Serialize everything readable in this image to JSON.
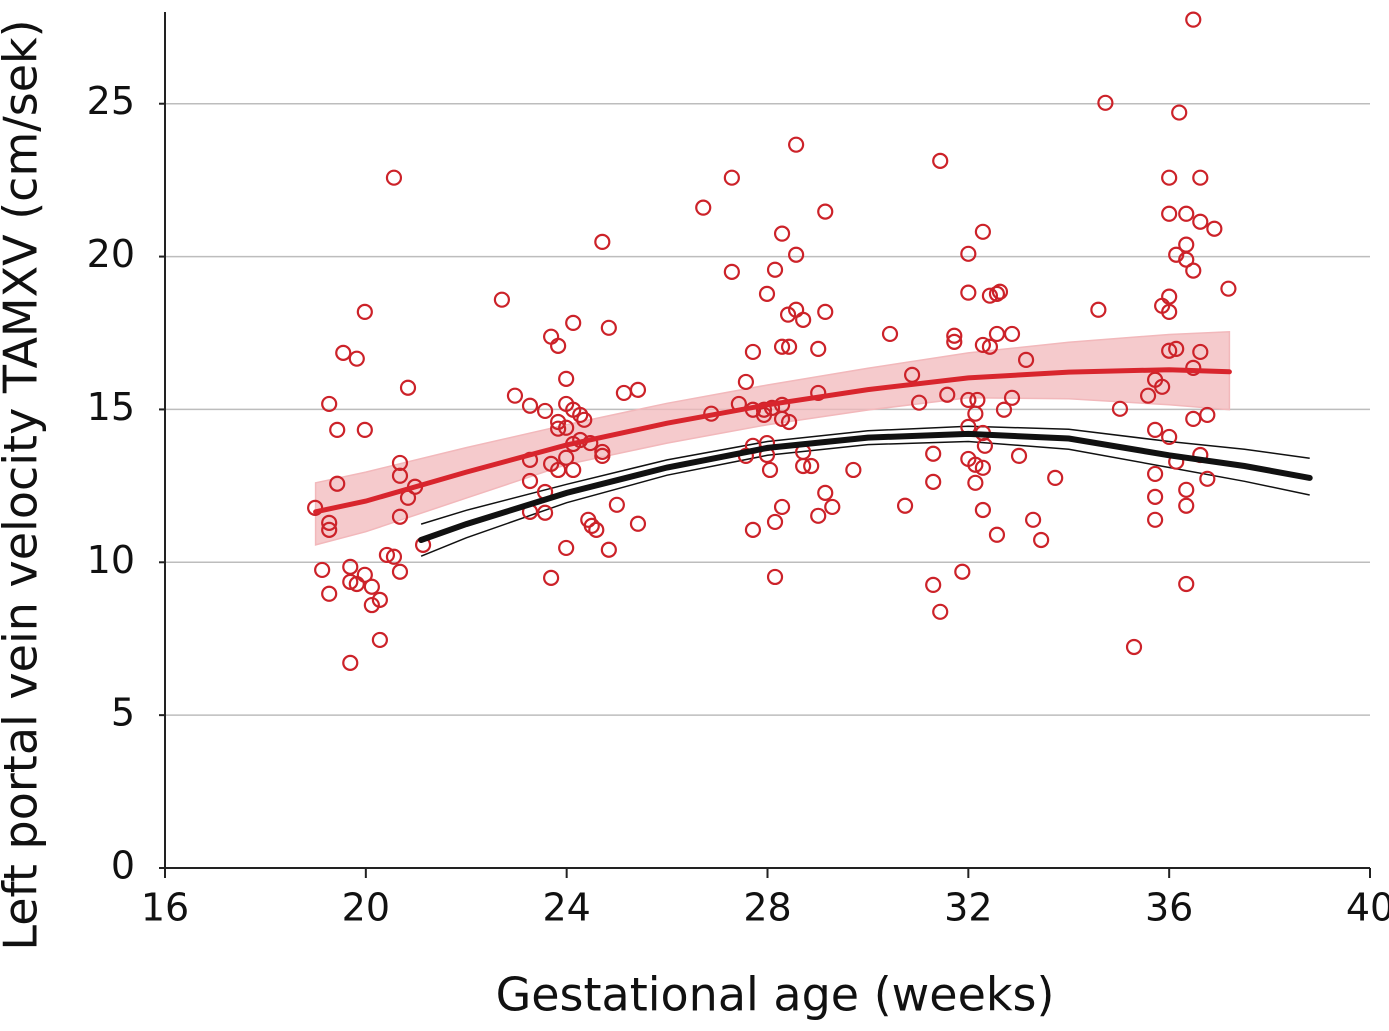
{
  "chart_data": {
    "type": "scatter",
    "x_label": "Gestational age (weeks)",
    "y_label": "Left portal vein velocity TAMXV (cm/sek)",
    "xlim": [
      16,
      40
    ],
    "ylim": [
      0,
      28
    ],
    "xticks": [
      16,
      20,
      24,
      28,
      32,
      36,
      40
    ],
    "yticks": [
      0,
      5,
      10,
      15,
      20,
      25
    ],
    "grid": true,
    "points": {
      "color": "#cc2229",
      "x": [
        18.99,
        19.13,
        19.27,
        19.27,
        19.27,
        19.27,
        19.43,
        19.43,
        19.55,
        19.69,
        19.69,
        19.69,
        19.82,
        19.82,
        19.98,
        19.98,
        19.98,
        20.12,
        20.12,
        20.28,
        20.28,
        20.42,
        20.56,
        20.56,
        20.68,
        20.68,
        20.68,
        20.68,
        20.84,
        20.84,
        20.98,
        21.14,
        22.71,
        22.97,
        23.27,
        23.27,
        23.27,
        23.27,
        23.57,
        23.57,
        23.57,
        23.69,
        23.69,
        23.69,
        23.83,
        23.83,
        23.83,
        23.83,
        23.99,
        23.99,
        23.99,
        23.99,
        23.99,
        24.13,
        24.13,
        24.13,
        24.13,
        24.27,
        24.27,
        24.35,
        24.47,
        24.43,
        24.5,
        24.59,
        24.71,
        24.71,
        24.71,
        24.84,
        24.84,
        25.0,
        25.14,
        25.42,
        25.42,
        26.72,
        26.88,
        27.29,
        27.29,
        27.43,
        27.57,
        27.57,
        27.71,
        27.71,
        27.71,
        27.71,
        27.99,
        27.93,
        27.93,
        27.99,
        27.99,
        28.05,
        28.15,
        28.09,
        28.15,
        28.15,
        28.29,
        28.29,
        28.29,
        28.29,
        28.29,
        28.41,
        28.43,
        28.43,
        28.57,
        28.57,
        28.57,
        28.71,
        28.71,
        28.71,
        28.87,
        29.01,
        29.01,
        29.01,
        29.15,
        29.15,
        29.15,
        29.29,
        29.71,
        30.44,
        30.74,
        30.88,
        31.02,
        31.3,
        31.3,
        31.3,
        31.44,
        31.44,
        31.58,
        31.72,
        31.72,
        31.88,
        32.0,
        32.0,
        32.0,
        32.0,
        32.0,
        32.14,
        32.14,
        32.14,
        32.18,
        32.29,
        32.29,
        32.29,
        32.33,
        32.29,
        32.29,
        32.43,
        32.43,
        32.57,
        32.63,
        32.57,
        32.57,
        32.71,
        32.87,
        32.87,
        33.01,
        33.15,
        33.29,
        33.45,
        33.73,
        34.59,
        34.73,
        35.02,
        35.3,
        35.58,
        35.72,
        35.72,
        35.72,
        35.72,
        35.72,
        35.86,
        35.86,
        36.0,
        36.0,
        36.0,
        36.0,
        36.0,
        36.0,
        36.14,
        36.14,
        36.14,
        36.2,
        36.34,
        36.34,
        36.34,
        36.34,
        36.34,
        36.34,
        36.48,
        36.48,
        36.48,
        36.48,
        36.62,
        36.62,
        36.62,
        36.62,
        36.76,
        36.76,
        36.9,
        37.18
      ],
      "y": [
        11.78,
        9.75,
        15.18,
        11.29,
        11.06,
        8.97,
        14.33,
        12.57,
        16.85,
        6.71,
        9.85,
        9.36,
        16.66,
        9.29,
        18.19,
        14.33,
        9.59,
        9.2,
        8.6,
        8.77,
        7.46,
        10.24,
        22.58,
        10.18,
        13.25,
        12.83,
        11.49,
        9.69,
        15.71,
        12.11,
        12.47,
        10.57,
        18.59,
        15.45,
        15.12,
        13.35,
        12.66,
        11.65,
        14.95,
        12.3,
        11.62,
        17.38,
        13.22,
        9.49,
        17.08,
        14.59,
        14.37,
        13.02,
        16.0,
        15.18,
        14.4,
        13.42,
        10.47,
        17.83,
        14.99,
        13.87,
        13.02,
        14.82,
        14.0,
        14.66,
        13.9,
        11.39,
        11.19,
        11.06,
        20.48,
        13.61,
        13.48,
        17.67,
        10.41,
        11.88,
        15.54,
        15.64,
        11.26,
        21.6,
        14.86,
        22.58,
        19.5,
        15.18,
        15.9,
        13.48,
        16.88,
        14.99,
        13.81,
        11.06,
        18.78,
        14.99,
        14.82,
        13.9,
        13.51,
        13.02,
        19.57,
        15.05,
        11.32,
        9.52,
        20.75,
        17.05,
        15.15,
        14.69,
        11.81,
        18.1,
        17.05,
        14.59,
        23.66,
        20.06,
        18.26,
        17.93,
        13.61,
        13.15,
        13.15,
        16.98,
        15.54,
        11.52,
        21.47,
        18.19,
        12.27,
        11.81,
        13.02,
        17.47,
        11.85,
        16.13,
        15.22,
        13.55,
        12.63,
        9.26,
        23.13,
        8.38,
        15.48,
        17.41,
        17.21,
        9.69,
        20.09,
        18.82,
        15.31,
        14.43,
        13.38,
        13.19,
        14.86,
        12.6,
        15.31,
        20.81,
        17.11,
        14.23,
        13.81,
        13.09,
        11.71,
        18.72,
        17.05,
        18.78,
        18.85,
        17.47,
        10.9,
        14.99,
        15.38,
        17.47,
        13.48,
        16.62,
        11.39,
        10.73,
        12.76,
        18.26,
        25.03,
        15.02,
        7.23,
        15.45,
        15.97,
        14.33,
        12.89,
        12.14,
        11.39,
        18.39,
        15.74,
        22.58,
        21.4,
        18.69,
        18.19,
        16.92,
        14.1,
        16.98,
        20.06,
        13.29,
        24.71,
        21.4,
        20.39,
        19.9,
        12.37,
        11.85,
        9.29,
        27.75,
        19.54,
        16.36,
        14.69,
        22.58,
        21.14,
        16.88,
        13.51,
        14.82,
        12.73,
        20.91,
        18.95
      ]
    },
    "fits": [
      {
        "color": "#d8252d",
        "band_color": "#f2b8bb",
        "x": [
          19,
          20,
          22,
          24,
          26,
          28,
          30,
          32,
          34,
          36,
          37.2
        ],
        "y": [
          11.65,
          12.0,
          12.95,
          13.84,
          14.55,
          15.15,
          15.65,
          16.03,
          16.22,
          16.3,
          16.23
        ],
        "upper": [
          12.6,
          12.95,
          13.75,
          14.5,
          15.2,
          15.8,
          16.35,
          16.85,
          17.2,
          17.45,
          17.54
        ],
        "lower": [
          10.57,
          11.0,
          12.1,
          13.2,
          13.9,
          14.5,
          14.98,
          15.38,
          15.35,
          15.15,
          14.99
        ]
      },
      {
        "color": "#111111",
        "band_color": "#111111",
        "x": [
          21.1,
          22,
          24,
          26,
          28,
          30,
          32,
          34,
          36,
          37.5,
          38.8
        ],
        "y": [
          10.73,
          11.25,
          12.27,
          13.1,
          13.74,
          14.08,
          14.2,
          14.05,
          13.5,
          13.15,
          12.76
        ],
        "upper": [
          11.25,
          11.7,
          12.55,
          13.35,
          13.95,
          14.3,
          14.45,
          14.35,
          13.95,
          13.7,
          13.4
        ],
        "lower": [
          10.2,
          10.8,
          11.95,
          12.85,
          13.5,
          13.85,
          13.95,
          13.7,
          13.1,
          12.65,
          12.2
        ]
      }
    ]
  }
}
